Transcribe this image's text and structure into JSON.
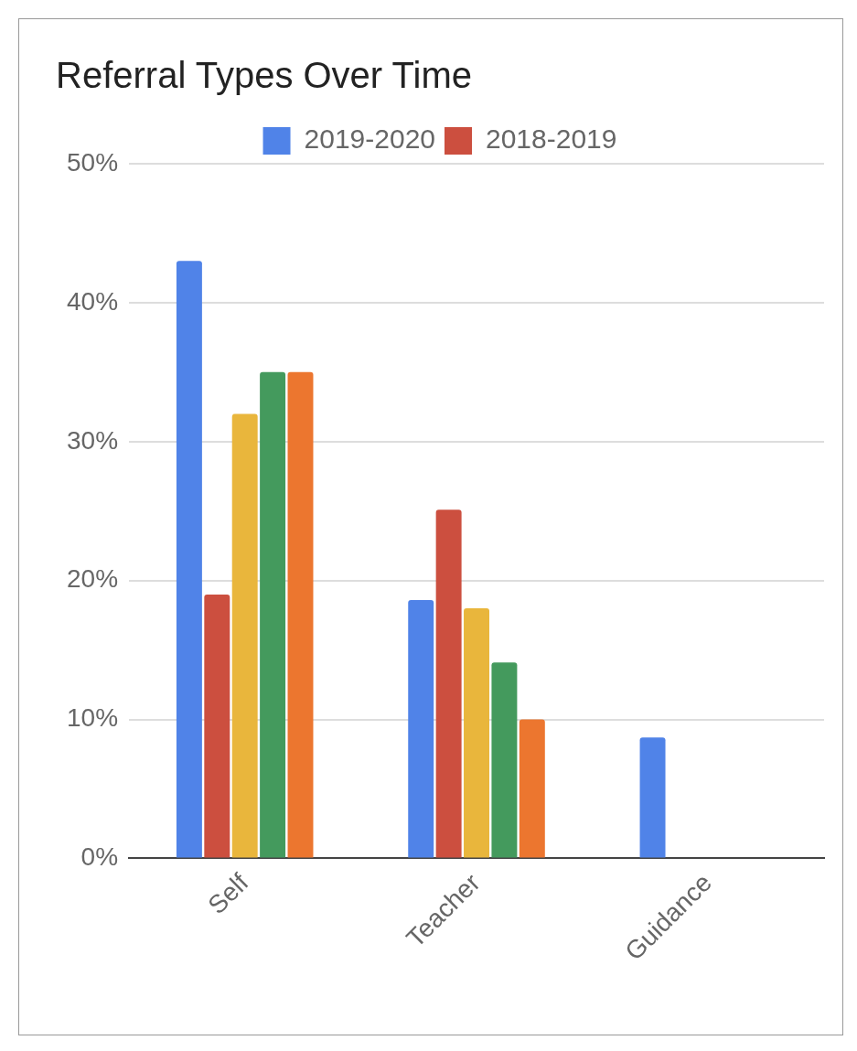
{
  "chart_data": {
    "type": "bar",
    "title": "Referral Types Over Time",
    "categories": [
      "Self",
      "Teacher",
      "Guidance"
    ],
    "series": [
      {
        "name": "2019-2020",
        "color": "#5083e8",
        "values": [
          43,
          18.6,
          8.7
        ]
      },
      {
        "name": "2018-2019",
        "color": "#cc4f3f",
        "values": [
          19,
          25.1,
          null
        ]
      },
      {
        "color": "#e9b63c",
        "values": [
          32,
          18,
          null
        ]
      },
      {
        "color": "#449a5d",
        "values": [
          35,
          14.1,
          null
        ]
      },
      {
        "color": "#ec762f",
        "values": [
          35,
          10,
          null
        ]
      }
    ],
    "ylim": [
      0,
      50
    ],
    "yticks": [
      {
        "value": 0,
        "label": "0%"
      },
      {
        "value": 10,
        "label": "10%"
      },
      {
        "value": 20,
        "label": "20%"
      },
      {
        "value": 30,
        "label": "30%"
      },
      {
        "value": 40,
        "label": "40%"
      },
      {
        "value": 50,
        "label": "50%"
      }
    ],
    "grid": "y",
    "legend": "top"
  }
}
